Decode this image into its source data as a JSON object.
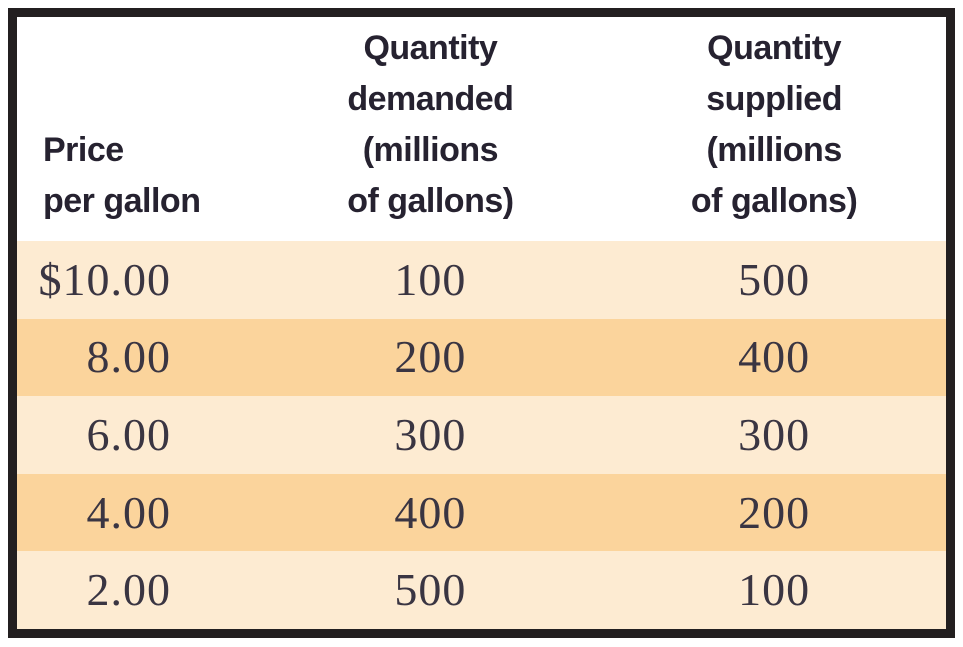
{
  "table": {
    "columns": [
      {
        "id": "price",
        "label_lines": [
          "Price",
          "per gallon"
        ]
      },
      {
        "id": "demanded",
        "label_lines": [
          "Quantity",
          "demanded",
          "(millions",
          "of gallons)"
        ]
      },
      {
        "id": "supplied",
        "label_lines": [
          "Quantity",
          "supplied",
          "(millions",
          "of gallons)"
        ]
      }
    ],
    "rows": [
      {
        "price": "$10.00",
        "demanded": "100",
        "supplied": "500"
      },
      {
        "price": "8.00",
        "demanded": "200",
        "supplied": "400"
      },
      {
        "price": "6.00",
        "demanded": "300",
        "supplied": "300"
      },
      {
        "price": "4.00",
        "demanded": "400",
        "supplied": "200"
      },
      {
        "price": "2.00",
        "demanded": "500",
        "supplied": "100"
      }
    ],
    "colors": {
      "frame_border": "#231f20",
      "row_band_dark": "#fbd49c",
      "row_band_light": "#fdebd2",
      "header_text": "#262230",
      "data_text": "#3a3542",
      "header_background": "#ffffff"
    }
  },
  "chart_data": {
    "type": "table",
    "title": "",
    "columns": [
      "Price per gallon",
      "Quantity demanded (millions of gallons)",
      "Quantity supplied (millions of gallons)"
    ],
    "price_per_gallon": [
      10.0,
      8.0,
      6.0,
      4.0,
      2.0
    ],
    "quantity_demanded_millions": [
      100,
      200,
      300,
      400,
      500
    ],
    "quantity_supplied_millions": [
      500,
      400,
      300,
      200,
      100
    ]
  }
}
